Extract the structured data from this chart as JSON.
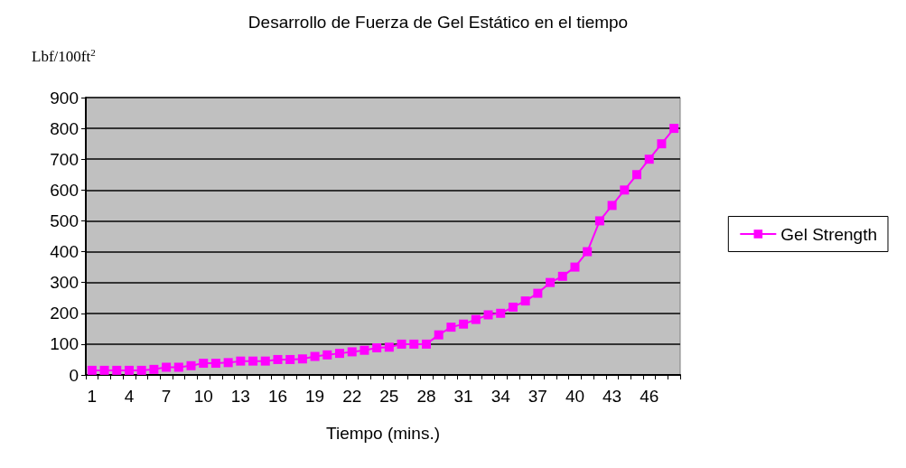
{
  "chart_data": {
    "type": "line",
    "title": "Desarrollo de Fuerza de Gel Estático en el tiempo",
    "xlabel": "Tiempo (mins.)",
    "ylabel": "Lbf/100ft$^{2}$",
    "categories": [
      "1",
      null,
      null,
      "4",
      null,
      null,
      "7",
      null,
      null,
      "10",
      null,
      null,
      "13",
      null,
      null,
      "16",
      null,
      null,
      "19",
      null,
      null,
      "22",
      null,
      null,
      "25",
      null,
      null,
      "28",
      null,
      null,
      "31",
      null,
      null,
      "34",
      null,
      null,
      "37",
      null,
      null,
      "40",
      null,
      null,
      "43",
      null,
      null,
      "46",
      null,
      null
    ],
    "series": [
      {
        "name": "Gel Strength",
        "color": "#ff00ff",
        "values": [
          15,
          15,
          15,
          15,
          15,
          18,
          25,
          25,
          30,
          38,
          38,
          40,
          45,
          45,
          45,
          50,
          50,
          52,
          60,
          65,
          70,
          75,
          80,
          88,
          90,
          100,
          100,
          100,
          130,
          155,
          165,
          180,
          195,
          200,
          220,
          240,
          265,
          300,
          320,
          350,
          400,
          500,
          550,
          600,
          650,
          700,
          750,
          800
        ]
      }
    ],
    "ylim": [
      0,
      900
    ],
    "yticks": [
      0,
      100,
      200,
      300,
      400,
      500,
      600,
      700,
      800,
      900
    ],
    "grid": "y",
    "legend": "right",
    "marker": "square",
    "line_style": "solid"
  }
}
